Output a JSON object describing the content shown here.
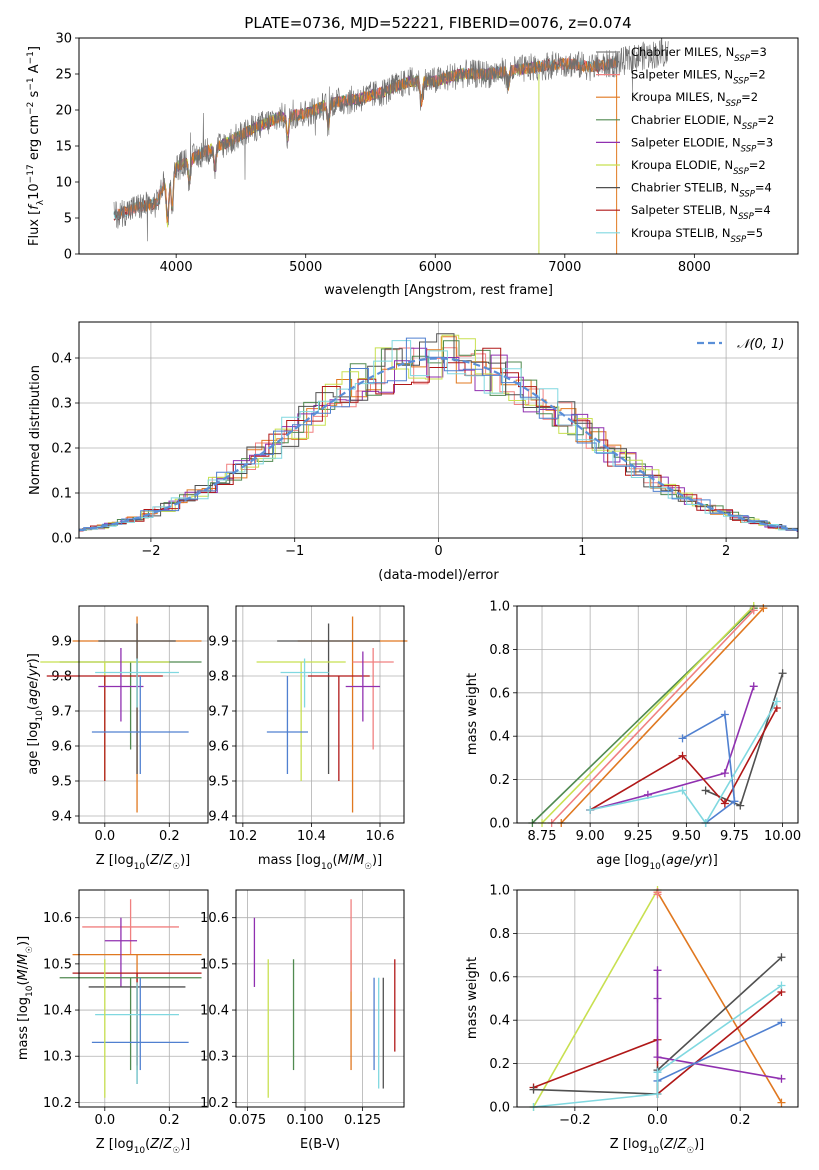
{
  "figure": {
    "title": "PLATE=0736, MJD=52221, FIBERID=0076, z=0.074",
    "model_colors": {
      "Chabrier MILES": "#808080",
      "Salpeter MILES": "#f08080",
      "Kroupa MILES": "#e07820",
      "Chabrier ELODIE": "#508a50",
      "Salpeter ELODIE": "#9030b0",
      "Kroupa ELODIE": "#c8e050",
      "Chabrier STELIB": "#505050",
      "Salpeter STELIB": "#b01818",
      "Kroupa STELIB": "#80d8e0",
      "Extra": "#5080d0"
    }
  },
  "chart_data": [
    {
      "id": "spectrum",
      "type": "line",
      "title": "PLATE=0736, MJD=52221, FIBERID=0076, z=0.074",
      "xlabel": "wavelength [Angstrom, rest frame]",
      "ylabel": "Flux [fλ10⁻¹⁷ erg cm⁻² s⁻¹ A⁻¹]",
      "xlim": [
        3250,
        8800
      ],
      "ylim": [
        0,
        30
      ],
      "xticks": [
        4000,
        5000,
        6000,
        7000,
        8000
      ],
      "yticks": [
        0,
        5,
        10,
        15,
        20,
        25,
        30
      ],
      "grid": false,
      "legend_position": "right",
      "legend": [
        {
          "label": "Chabrier MILES, N",
          "sub": "SSP",
          "tail": "=3"
        },
        {
          "label": "Salpeter MILES, N",
          "sub": "SSP",
          "tail": "=2"
        },
        {
          "label": "Kroupa MILES, N",
          "sub": "SSP",
          "tail": "=2"
        },
        {
          "label": "Chabrier ELODIE, N",
          "sub": "SSP",
          "tail": "=2"
        },
        {
          "label": "Salpeter ELODIE, N",
          "sub": "SSP",
          "tail": "=3"
        },
        {
          "label": "Kroupa ELODIE, N",
          "sub": "SSP",
          "tail": "=2"
        },
        {
          "label": "Chabrier STELIB, N",
          "sub": "SSP",
          "tail": "=4"
        },
        {
          "label": "Salpeter STELIB, N",
          "sub": "SSP",
          "tail": "=4"
        },
        {
          "label": "Kroupa STELIB, N",
          "sub": "SSP",
          "tail": "=5"
        }
      ],
      "continuum": {
        "x": [
          3550,
          3700,
          3850,
          3900,
          4000,
          4200,
          4400,
          4600,
          4800,
          5000,
          5200,
          5400,
          5600,
          5800,
          6000,
          6200,
          6400,
          6600,
          6800,
          7000,
          7200,
          7400,
          7600,
          7800
        ],
        "y": [
          5.5,
          6.5,
          7.0,
          9.5,
          12.0,
          14.0,
          15.5,
          17.5,
          19.0,
          19.5,
          21.0,
          21.5,
          22.5,
          24.0,
          24.0,
          25.0,
          25.0,
          25.5,
          26.0,
          26.5,
          26.0,
          26.5,
          27.5,
          28.0
        ]
      }
    },
    {
      "id": "residuals",
      "type": "histogram",
      "xlabel": "(data-model)/error",
      "ylabel": "Normed distribution",
      "xlim": [
        -2.5,
        2.5
      ],
      "ylim": [
        0,
        0.48
      ],
      "xticks": [
        -2,
        -1,
        0,
        1,
        2
      ],
      "yticks": [
        0.0,
        0.1,
        0.2,
        0.3,
        0.4
      ],
      "grid": true,
      "legend": "𝒩(0, 1)",
      "legend_position": "top-right",
      "reference": {
        "type": "normal",
        "mean": 0,
        "sigma": 1
      }
    },
    {
      "id": "age_vs_Z",
      "type": "errorbar",
      "xlabel": "Z [log₁₀(Z/Z☉)]",
      "ylabel": "age  [log₁₀(age/yr)]",
      "xlim": [
        -0.08,
        0.32
      ],
      "ylim": [
        9.38,
        10.0
      ],
      "xticks": [
        0.0,
        0.2
      ],
      "yticks": [
        9.4,
        9.5,
        9.6,
        9.7,
        9.8,
        9.9
      ],
      "grid": true,
      "points": [
        {
          "model": "Kroupa MILES",
          "x": 0.1,
          "xerr": 0.2,
          "y": 9.9,
          "yerr": [
            0.49,
            0.07
          ]
        },
        {
          "model": "Chabrier ELODIE",
          "x": 0.08,
          "xerr": 0.22,
          "y": 9.84,
          "yerr": [
            0.25,
            0.0
          ]
        },
        {
          "model": "Kroupa ELODIE",
          "x": 0.0,
          "xerr": 0.2,
          "y": 9.84,
          "yerr": [
            0.34,
            0.0
          ]
        },
        {
          "model": "Chabrier STELIB",
          "x": 0.1,
          "xerr": 0.12,
          "y": 9.9,
          "yerr": [
            0.38,
            0.05
          ]
        },
        {
          "model": "Salpeter STELIB",
          "x": 0.0,
          "xerr": 0.18,
          "y": 9.8,
          "yerr": [
            0.3,
            0.0
          ]
        },
        {
          "model": "Salpeter ELODIE",
          "x": 0.05,
          "xerr": 0.07,
          "y": 9.77,
          "yerr": [
            0.1,
            0.11
          ]
        },
        {
          "model": "Extra",
          "x": 0.11,
          "xerr": 0.15,
          "y": 9.64,
          "yerr": [
            0.12,
            0.16
          ]
        },
        {
          "model": "Kroupa STELIB",
          "x": 0.1,
          "xerr": 0.13,
          "y": 9.81,
          "yerr": [
            0.1,
            0.04
          ]
        }
      ]
    },
    {
      "id": "age_vs_mass",
      "type": "errorbar",
      "xlabel": "mass [log₁₀(M/M☉)]",
      "xlim": [
        10.18,
        10.67
      ],
      "ylim": [
        9.38,
        10.0
      ],
      "xticks": [
        10.2,
        10.4,
        10.6
      ],
      "yticks": [
        9.4,
        9.5,
        9.6,
        9.7,
        9.8,
        9.9
      ],
      "grid": true,
      "points": [
        {
          "model": "Kroupa MILES",
          "x": 10.52,
          "xerr": 0.16,
          "y": 9.9,
          "yerr": [
            0.49,
            0.07
          ]
        },
        {
          "model": "Chabrier STELIB",
          "x": 10.45,
          "xerr": 0.15,
          "y": 9.9,
          "yerr": [
            0.38,
            0.05
          ]
        },
        {
          "model": "Kroupa ELODIE",
          "x": 10.37,
          "xerr": 0.13,
          "y": 9.84,
          "yerr": [
            0.34,
            0.0
          ]
        },
        {
          "model": "Salpeter MILES",
          "x": 10.58,
          "xerr": 0.06,
          "y": 9.84,
          "yerr": [
            0.25,
            0.04
          ]
        },
        {
          "model": "Salpeter STELIB",
          "x": 10.48,
          "xerr": 0.09,
          "y": 9.8,
          "yerr": [
            0.3,
            0.0
          ]
        },
        {
          "model": "Salpeter ELODIE",
          "x": 10.55,
          "xerr": 0.05,
          "y": 9.77,
          "yerr": [
            0.1,
            0.1
          ]
        },
        {
          "model": "Extra",
          "x": 10.33,
          "xerr": 0.06,
          "y": 9.64,
          "yerr": [
            0.12,
            0.16
          ]
        },
        {
          "model": "Kroupa STELIB",
          "x": 10.38,
          "xerr": 0.07,
          "y": 9.81,
          "yerr": [
            0.1,
            0.04
          ]
        }
      ]
    },
    {
      "id": "weight_vs_age",
      "type": "line",
      "xlabel": "age  [log₁₀(age/yr)]",
      "ylabel": "mass weight",
      "xlim": [
        8.62,
        10.08
      ],
      "ylim": [
        0,
        1
      ],
      "xticks": [
        8.75,
        9.0,
        9.25,
        9.5,
        9.75,
        10.0
      ],
      "yticks": [
        0.0,
        0.2,
        0.4,
        0.6,
        0.8,
        1.0
      ],
      "grid": true,
      "series": [
        {
          "model": "Chabrier ELODIE",
          "x": [
            8.7,
            9.85
          ],
          "y": [
            0.0,
            0.99
          ]
        },
        {
          "model": "Kroupa ELODIE",
          "x": [
            8.75,
            9.85
          ],
          "y": [
            0.0,
            1.0
          ]
        },
        {
          "model": "Salpeter MILES",
          "x": [
            8.8,
            9.85
          ],
          "y": [
            0.0,
            0.98
          ]
        },
        {
          "model": "Kroupa MILES",
          "x": [
            8.85,
            9.9
          ],
          "y": [
            0.0,
            0.99
          ]
        },
        {
          "model": "Chabrier STELIB",
          "x": [
            9.6,
            9.78,
            10.0
          ],
          "y": [
            0.15,
            0.08,
            0.69
          ]
        },
        {
          "model": "Salpeter ELODIE",
          "x": [
            9.0,
            9.3,
            9.7,
            9.85
          ],
          "y": [
            0.06,
            0.13,
            0.23,
            0.63
          ]
        },
        {
          "model": "Salpeter STELIB",
          "x": [
            9.0,
            9.48,
            9.7,
            9.97
          ],
          "y": [
            0.06,
            0.31,
            0.09,
            0.53
          ]
        },
        {
          "model": "Extra",
          "x": [
            9.48,
            9.7,
            9.75,
            9.6
          ],
          "y": [
            0.39,
            0.5,
            0.1,
            0.0
          ]
        },
        {
          "model": "Kroupa STELIB",
          "x": [
            9.0,
            9.48,
            9.6,
            9.97
          ],
          "y": [
            0.06,
            0.15,
            0.0,
            0.56
          ]
        }
      ]
    },
    {
      "id": "mass_vs_Z",
      "type": "errorbar",
      "xlabel": "Z [log₁₀(Z/Z☉)]",
      "ylabel": "mass [log₁₀(M/M☉)]",
      "xlim": [
        -0.08,
        0.32
      ],
      "ylim": [
        10.19,
        10.66
      ],
      "xticks": [
        0.0,
        0.2
      ],
      "yticks": [
        10.2,
        10.3,
        10.4,
        10.5,
        10.6
      ],
      "grid": true,
      "points": [
        {
          "model": "Salpeter MILES",
          "x": 0.08,
          "xerr": 0.15,
          "y": 10.58,
          "yerr": [
            0.06,
            0.06
          ]
        },
        {
          "model": "Kroupa MILES",
          "x": 0.1,
          "xerr": 0.2,
          "y": 10.52,
          "yerr": [
            0.25,
            0.0
          ]
        },
        {
          "model": "Salpeter ELODIE",
          "x": 0.05,
          "xerr": 0.05,
          "y": 10.55,
          "yerr": [
            0.1,
            0.05
          ]
        },
        {
          "model": "Salpeter STELIB",
          "x": 0.1,
          "xerr": 0.2,
          "y": 10.48,
          "yerr": [
            0.2,
            0.0
          ]
        },
        {
          "model": "Chabrier ELODIE",
          "x": 0.08,
          "xerr": 0.22,
          "y": 10.47,
          "yerr": [
            0.2,
            0.0
          ]
        },
        {
          "model": "Chabrier STELIB",
          "x": 0.1,
          "xerr": 0.15,
          "y": 10.45,
          "yerr": [
            0.21,
            0.0
          ]
        },
        {
          "model": "Kroupa STELIB",
          "x": 0.1,
          "xerr": 0.13,
          "y": 10.39,
          "yerr": [
            0.15,
            0.07
          ]
        },
        {
          "model": "Extra",
          "x": 0.11,
          "xerr": 0.15,
          "y": 10.33,
          "yerr": [
            0.06,
            0.14
          ]
        },
        {
          "model": "Kroupa ELODIE",
          "x": 0.0,
          "xerr": 0.0,
          "y": 10.37,
          "yerr": [
            0.16,
            0.14
          ]
        }
      ]
    },
    {
      "id": "mass_vs_ebv",
      "type": "errorbar",
      "xlabel": "E(B-V)",
      "xlim": [
        0.07,
        0.143
      ],
      "ylim": [
        10.19,
        10.66
      ],
      "xticks": [
        0.075,
        0.1,
        0.125
      ],
      "yticks": [
        10.2,
        10.3,
        10.4,
        10.5,
        10.6
      ],
      "grid": true,
      "points": [
        {
          "model": "Salpeter ELODIE",
          "x": 0.078,
          "y": 10.53,
          "yerr": [
            0.08,
            0.07
          ]
        },
        {
          "model": "Kroupa ELODIE",
          "x": 0.084,
          "y": 10.36,
          "yerr": [
            0.15,
            0.15
          ]
        },
        {
          "model": "Chabrier ELODIE",
          "x": 0.095,
          "y": 10.39,
          "yerr": [
            0.12,
            0.12
          ]
        },
        {
          "model": "Kroupa MILES",
          "x": 0.12,
          "y": 10.4,
          "yerr": [
            0.13,
            0.13
          ]
        },
        {
          "model": "Salpeter MILES",
          "x": 0.12,
          "y": 10.54,
          "yerr": [
            0.1,
            0.1
          ]
        },
        {
          "model": "Extra",
          "x": 0.13,
          "y": 10.37,
          "yerr": [
            0.1,
            0.1
          ]
        },
        {
          "model": "Kroupa STELIB",
          "x": 0.132,
          "y": 10.35,
          "yerr": [
            0.12,
            0.12
          ]
        },
        {
          "model": "Chabrier STELIB",
          "x": 0.134,
          "y": 10.35,
          "yerr": [
            0.12,
            0.12
          ]
        },
        {
          "model": "Salpeter STELIB",
          "x": 0.139,
          "y": 10.41,
          "yerr": [
            0.1,
            0.1
          ]
        }
      ]
    },
    {
      "id": "weight_vs_Z",
      "type": "line",
      "xlabel": "Z [log₁₀(Z/Z☉)]",
      "ylabel": "mass weight",
      "xlim": [
        -0.34,
        0.34
      ],
      "ylim": [
        0,
        1
      ],
      "xticks": [
        -0.2,
        0.0,
        0.2
      ],
      "yticks": [
        0.0,
        0.2,
        0.4,
        0.6,
        0.8,
        1.0
      ],
      "grid": true,
      "series": [
        {
          "model": "Kroupa ELODIE",
          "x": [
            -0.3,
            0.0
          ],
          "y": [
            0.0,
            1.0
          ]
        },
        {
          "model": "Kroupa MILES",
          "x": [
            0.0,
            0.3
          ],
          "y": [
            0.99,
            0.02
          ]
        },
        {
          "model": "Salpeter MILES",
          "x": [
            0.0,
            0.0
          ],
          "y": [
            0.99,
            0.98
          ]
        },
        {
          "model": "Salpeter STELIB",
          "x": [
            -0.3,
            0.0,
            0.0,
            0.3
          ],
          "y": [
            0.09,
            0.31,
            0.06,
            0.53
          ]
        },
        {
          "model": "Chabrier STELIB",
          "x": [
            -0.3,
            0.0,
            0.0,
            0.3
          ],
          "y": [
            0.08,
            0.06,
            0.17,
            0.69
          ]
        },
        {
          "model": "Salpeter ELODIE",
          "x": [
            0.0,
            0.0,
            0.0,
            0.3
          ],
          "y": [
            0.63,
            0.5,
            0.23,
            0.13
          ]
        },
        {
          "model": "Extra",
          "x": [
            0.0,
            0.0,
            0.3
          ],
          "y": [
            0.16,
            0.12,
            0.39
          ]
        },
        {
          "model": "Kroupa STELIB",
          "x": [
            -0.3,
            0.0,
            0.0,
            0.3
          ],
          "y": [
            0.0,
            0.06,
            0.16,
            0.56
          ]
        }
      ]
    }
  ]
}
